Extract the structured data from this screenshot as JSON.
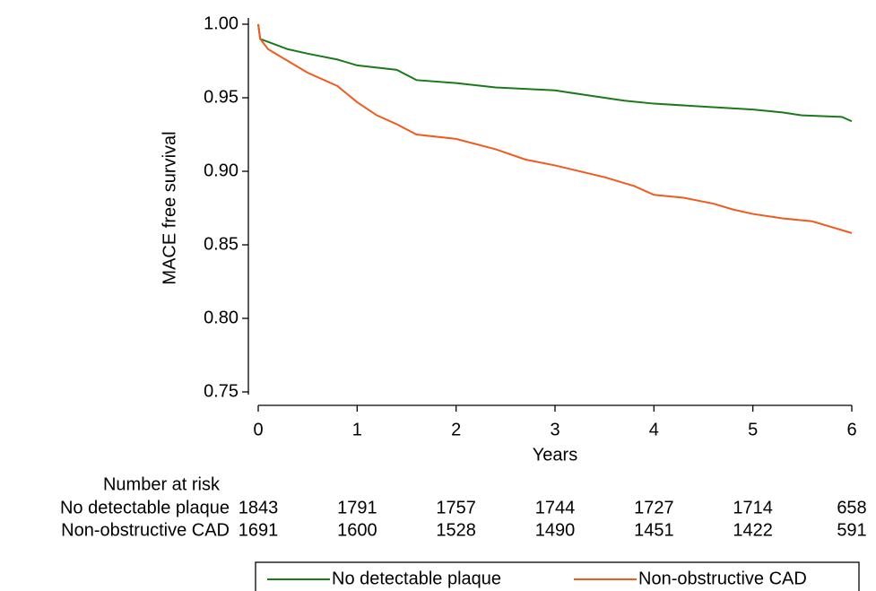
{
  "chart_data": {
    "type": "line",
    "y_label": "MACE free survival",
    "x_label": "Years",
    "xlim": [
      0,
      6
    ],
    "xticks": [
      0,
      1,
      2,
      3,
      4,
      5,
      6
    ],
    "ylim": [
      0.75,
      1.0
    ],
    "yticks": [
      0.75,
      {
        "value": 0.8,
        "label": "0.80"
      },
      0.85,
      {
        "value": 0.9,
        "label": "0.90"
      },
      0.95,
      {
        "value": 1.0,
        "label": "1.00"
      }
    ],
    "series": [
      {
        "name": "No detectable plaque",
        "color": "#1a7a1a",
        "x": [
          0,
          0.02,
          0.1,
          0.3,
          0.5,
          0.8,
          1.0,
          1.4,
          1.6,
          2,
          2.4,
          3,
          3.3,
          3.7,
          4,
          4.5,
          5,
          5.3,
          5.5,
          5.9,
          6
        ],
        "values": [
          1.0,
          0.99,
          0.988,
          0.983,
          0.98,
          0.976,
          0.972,
          0.969,
          0.962,
          0.96,
          0.957,
          0.955,
          0.952,
          0.948,
          0.946,
          0.944,
          0.942,
          0.94,
          0.938,
          0.937,
          0.934
        ]
      },
      {
        "name": "Non-obstructive CAD",
        "color": "#f05a1e",
        "x": [
          0,
          0.02,
          0.1,
          0.3,
          0.5,
          0.8,
          1.0,
          1.2,
          1.4,
          1.6,
          2,
          2.4,
          2.7,
          3,
          3.5,
          3.8,
          4,
          4.3,
          4.6,
          4.8,
          5,
          5.3,
          5.6,
          5.8,
          6
        ],
        "values": [
          1.0,
          0.99,
          0.983,
          0.975,
          0.967,
          0.958,
          0.947,
          0.938,
          0.932,
          0.925,
          0.922,
          0.915,
          0.908,
          0.904,
          0.896,
          0.89,
          0.884,
          0.882,
          0.878,
          0.874,
          0.871,
          0.868,
          0.866,
          0.862,
          0.858
        ]
      }
    ],
    "risk_table": {
      "title": "Number at risk",
      "rows": [
        {
          "label": "No detectable plaque",
          "counts": [
            1843,
            1791,
            1757,
            1744,
            1727,
            1714,
            658
          ]
        },
        {
          "label": "Non-obstructive CAD",
          "counts": [
            1691,
            1600,
            1528,
            1490,
            1451,
            1422,
            591
          ]
        }
      ]
    }
  }
}
